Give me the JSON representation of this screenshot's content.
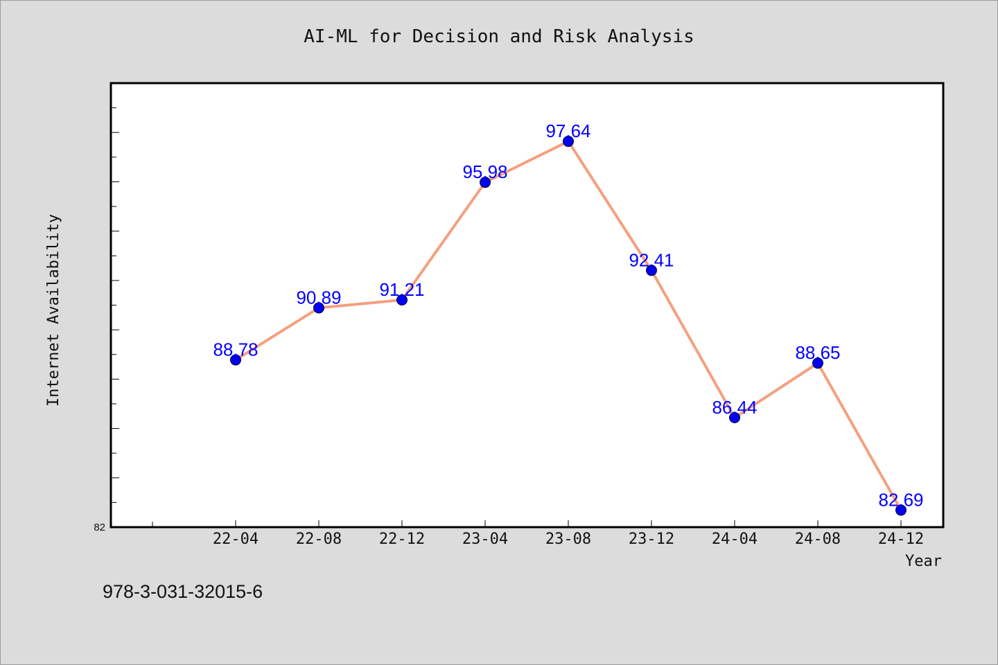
{
  "chart_data": {
    "type": "line",
    "title": "AI-ML for Decision and Risk Analysis",
    "xlabel": "Year",
    "ylabel": "Internet Availability",
    "categories": [
      "22-04",
      "22-08",
      "22-12",
      "23-04",
      "23-08",
      "23-12",
      "24-04",
      "24-08",
      "24-12"
    ],
    "values": [
      88.78,
      90.89,
      91.21,
      95.98,
      97.64,
      92.41,
      86.44,
      88.65,
      82.69
    ],
    "value_labels": [
      "88.78",
      "90.89",
      "91.21",
      "95.98",
      "97.64",
      "92.41",
      "86.44",
      "88.65",
      "82.69"
    ],
    "ylim": [
      82,
      100
    ],
    "y_tick_label_min": "82",
    "grid": false,
    "line_color": "#f4a07e",
    "marker_color": "#0000ee",
    "label_color": "#0000ff"
  },
  "footer_text": "978-3-031-32015-6"
}
